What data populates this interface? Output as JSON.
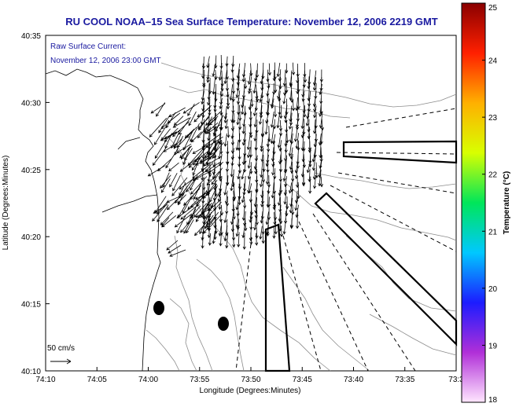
{
  "chart_data": {
    "type": "scatter",
    "title": "RU COOL  NOAA–15  Sea Surface Temperature:  November 12, 2006 2219 GMT",
    "annotation_line1": "Raw Surface Current:",
    "annotation_line2": "November 12, 2006 23:00 GMT",
    "xlabel": "Longitude (Degrees:Minutes)",
    "ylabel": "Latitude (Degrees:Minutes)",
    "x_ticks": [
      "74:10",
      "74:05",
      "74:00",
      "73:55",
      "73:50",
      "73:45",
      "73:40",
      "73:35",
      "73:3"
    ],
    "y_ticks": [
      "40:10",
      "40:15",
      "40:20",
      "40:25",
      "40:30",
      "40:35"
    ],
    "xlim_minutes_west_of_73": [
      70,
      30
    ],
    "ylim_minutes_north_of_40": [
      10,
      35
    ],
    "scale_label": "50 cm/s",
    "colorbar": {
      "label": "Temperature (°C)",
      "ticks": [
        "18",
        "19",
        "20",
        "21",
        "22",
        "23",
        "24",
        "25"
      ],
      "range": [
        18,
        25
      ],
      "colors": [
        "#ffe6ff",
        "#b02fd8",
        "#1c1cff",
        "#00c8ff",
        "#00e65a",
        "#d8ff00",
        "#ffb000",
        "#ff2000",
        "#8a0000"
      ]
    },
    "grid": false,
    "legend": "none"
  }
}
